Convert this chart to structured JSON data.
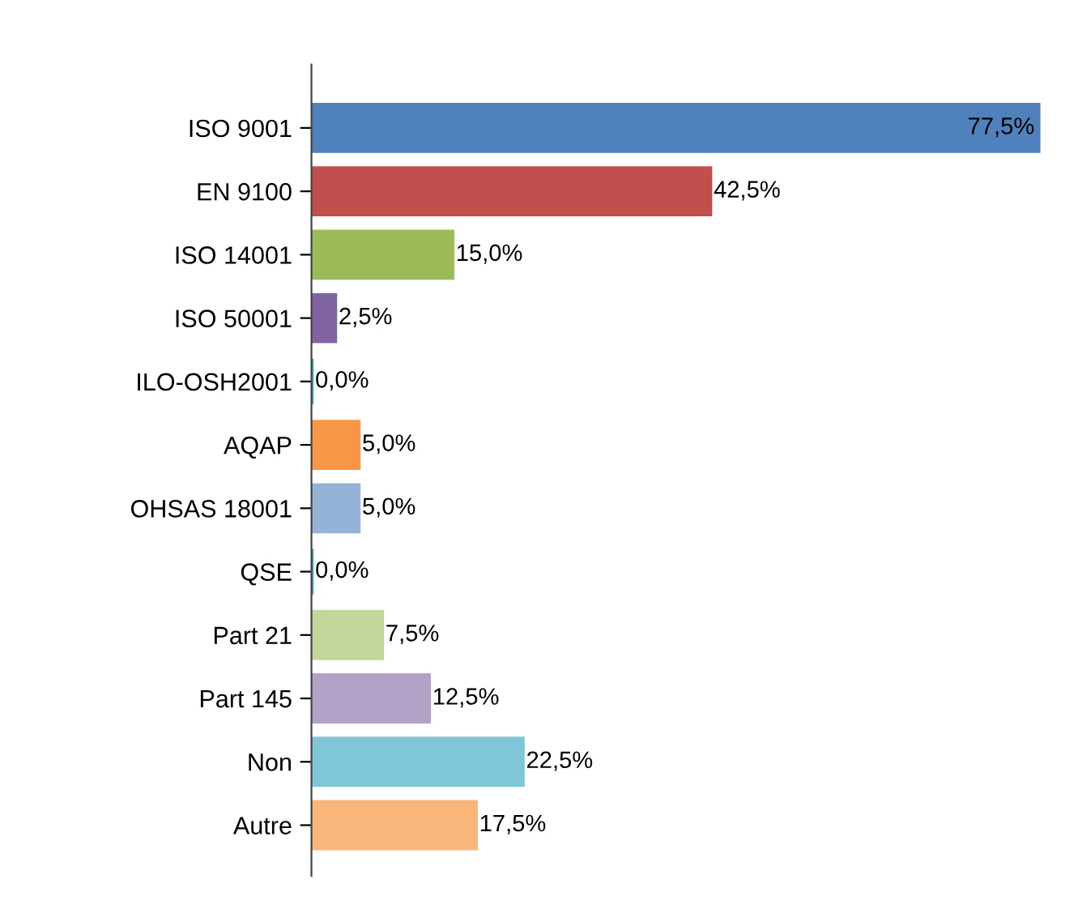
{
  "chart_data": {
    "type": "bar",
    "orientation": "horizontal",
    "categories": [
      "ISO 9001",
      "EN 9100",
      "ISO 14001",
      "ISO 50001",
      "ILO-OSH2001",
      "AQAP",
      "OHSAS 18001",
      "QSE",
      "Part 21",
      "Part 145",
      "Non",
      "Autre"
    ],
    "values": [
      77.5,
      42.5,
      15.0,
      2.5,
      0.0,
      5.0,
      5.0,
      0.0,
      7.5,
      12.5,
      22.5,
      17.5
    ],
    "colors": [
      "#4f81bd",
      "#c0504d",
      "#9bbb59",
      "#8064a2",
      "#4bacc6",
      "#f79646",
      "#95b3d7",
      "#4bacc6",
      "#c3d69b",
      "#b3a2c7",
      "#7fc6d8",
      "#fab57a"
    ],
    "value_labels": [
      "77,5%",
      "42,5%",
      "15,0%",
      "2,5%",
      "0,0%",
      "5,0%",
      "5,0%",
      "0,0%",
      "7,5%",
      "12,5%",
      "22,5%",
      "17,5%"
    ],
    "grid": false,
    "legend": false,
    "tick_labels": "y"
  }
}
